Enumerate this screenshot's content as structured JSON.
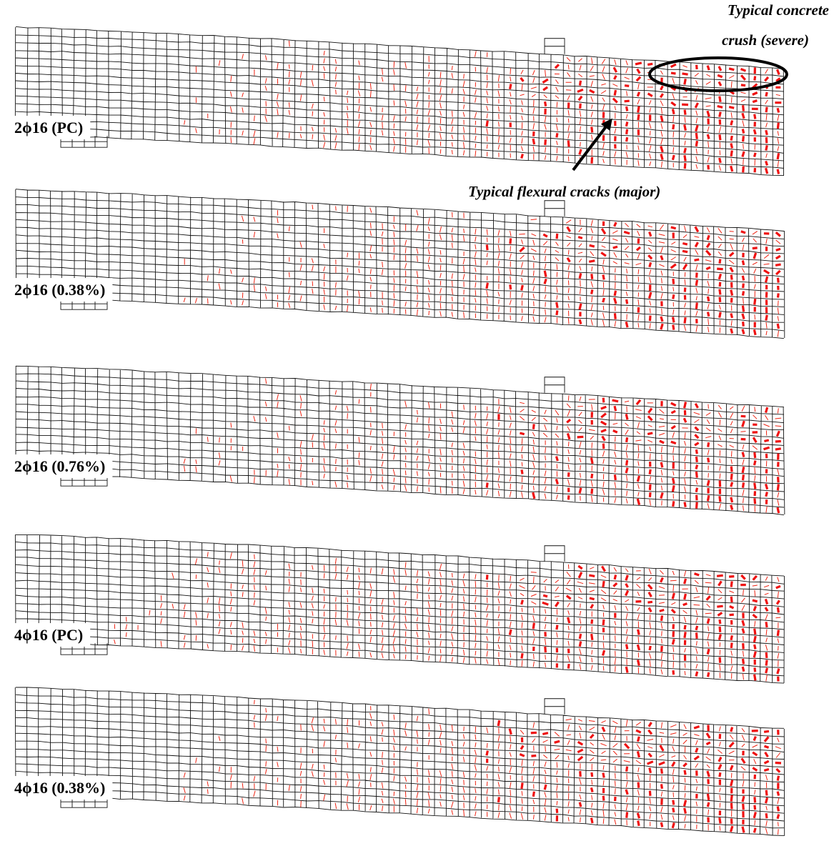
{
  "panels": [
    {
      "label": "2ϕ16 (PC)"
    },
    {
      "label": "2ϕ16 (0.38%)"
    },
    {
      "label": "2ϕ16 (0.76%)"
    },
    {
      "label": "4ϕ16 (PC)"
    },
    {
      "label": "4ϕ16 (0.38%)"
    }
  ],
  "annotations": {
    "crush": [
      "Typical concrete",
      "crush (severe)"
    ],
    "flexural": "Typical flexural cracks (major)"
  }
}
